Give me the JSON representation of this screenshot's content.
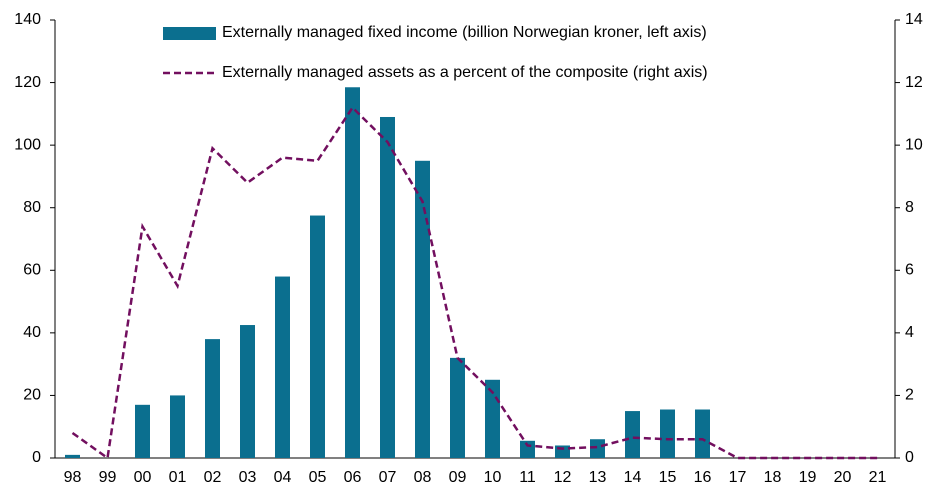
{
  "chart_data": {
    "type": "bar-line",
    "categories": [
      "98",
      "99",
      "00",
      "01",
      "02",
      "03",
      "04",
      "05",
      "06",
      "07",
      "08",
      "09",
      "10",
      "11",
      "12",
      "13",
      "14",
      "15",
      "16",
      "17",
      "18",
      "19",
      "20",
      "21"
    ],
    "series": [
      {
        "name": "Externally managed fixed income (billion Norwegian kroner, left axis)",
        "type": "bar",
        "color": "#0b6f8f",
        "values": [
          1,
          0,
          17,
          20,
          38,
          42.5,
          58,
          77.5,
          118.5,
          109,
          95,
          32,
          25,
          5.5,
          4,
          6,
          15,
          15.5,
          15.5,
          0,
          0,
          0,
          0,
          0
        ]
      },
      {
        "name": "Externally managed assets as a percent of the composite (right axis)",
        "type": "line",
        "axis": "y2",
        "color": "#720f5f",
        "dashed": true,
        "values": [
          0.8,
          0,
          7.4,
          5.5,
          9.9,
          8.8,
          9.6,
          9.5,
          11.2,
          10.1,
          8.2,
          3.2,
          2.1,
          0.4,
          0.3,
          0.35,
          0.65,
          0.6,
          0.6,
          0,
          0,
          0,
          0,
          0
        ]
      }
    ],
    "ylim": [
      0,
      140
    ],
    "yticks": [
      0,
      20,
      40,
      60,
      80,
      100,
      120,
      140
    ],
    "y2lim": [
      0,
      14
    ],
    "y2ticks": [
      0,
      2,
      4,
      6,
      8,
      10,
      12,
      14
    ],
    "grid": false,
    "legend": "top"
  }
}
